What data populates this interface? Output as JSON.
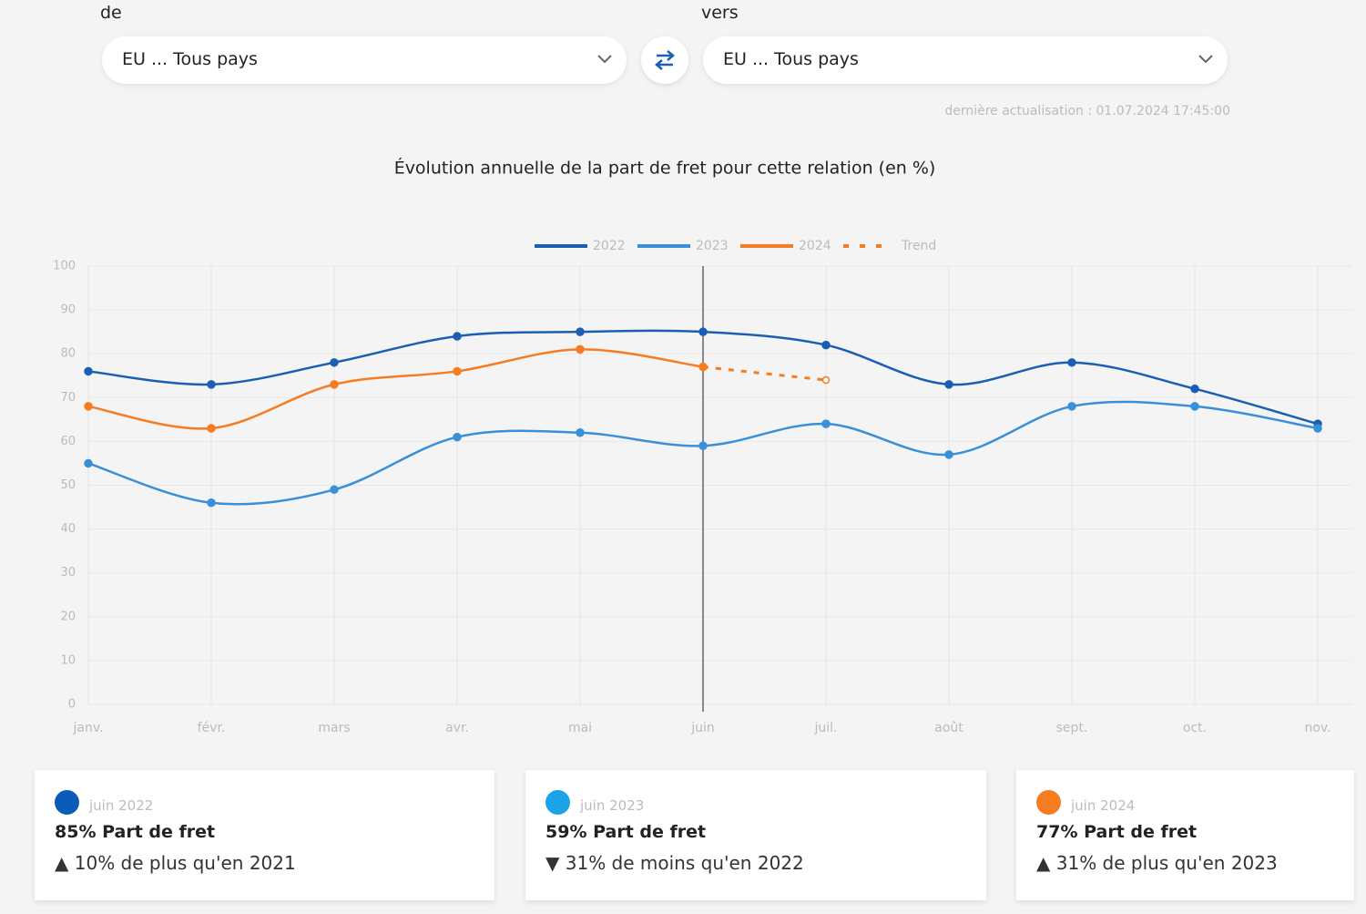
{
  "header": {
    "from_label": "de",
    "from_value": "EU ... Tous pays",
    "to_label": "vers",
    "to_value": "EU ... Tous pays",
    "updated": "dernière actualisation : 01.07.2024 17:45:00"
  },
  "chart_data": {
    "type": "line",
    "title": "Évolution annuelle de la part de fret pour cette relation (en %)",
    "categories": [
      "janv.",
      "févr.",
      "mars",
      "avr.",
      "mai",
      "juin",
      "juil.",
      "août",
      "sept.",
      "oct.",
      "nov."
    ],
    "series": [
      {
        "name": "2022",
        "color": "#1a5fb4",
        "values": [
          76,
          73,
          78,
          84,
          85,
          85,
          82,
          73,
          78,
          72,
          64
        ]
      },
      {
        "name": "2023",
        "color": "#3a8fd9",
        "values": [
          55,
          46,
          49,
          61,
          62,
          59,
          64,
          57,
          68,
          68,
          63
        ]
      },
      {
        "name": "2024",
        "color": "#f57c20",
        "values": [
          68,
          63,
          73,
          76,
          81,
          77,
          null,
          null,
          null,
          null,
          null
        ]
      },
      {
        "name": "Trend",
        "color": "#f57c20",
        "dashed": true,
        "values": [
          null,
          null,
          null,
          null,
          null,
          77,
          74,
          null,
          null,
          null,
          null
        ]
      }
    ],
    "ylim": [
      0,
      100
    ],
    "yticks": [
      0,
      10,
      20,
      30,
      40,
      50,
      60,
      70,
      80,
      90,
      100
    ],
    "grid": true,
    "legend": "top"
  },
  "cards": [
    {
      "color": "#0a5cb8",
      "period": "juin 2022",
      "headline": "85% Part de fret",
      "change": "▲ 10% de plus qu'en 2021"
    },
    {
      "color": "#1ba3e8",
      "period": "juin 2023",
      "headline": "59% Part de fret",
      "change": "▼ 31% de moins qu'en 2022"
    },
    {
      "color": "#f57c20",
      "period": "juin 2024",
      "headline": "77% Part de fret",
      "change": "▲ 31% de plus qu'en 2023"
    }
  ]
}
